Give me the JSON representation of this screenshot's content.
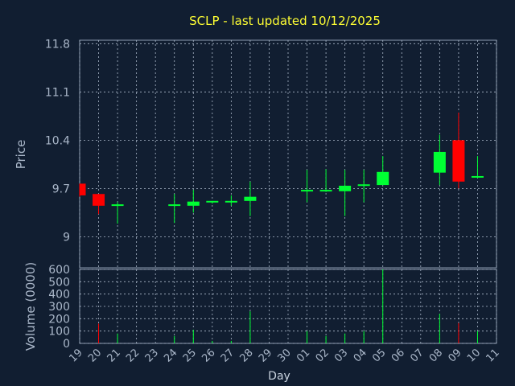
{
  "chart_data": {
    "type": "candlestick",
    "title": "SCLP - last updated 10/12/2025",
    "xlabel": "Day",
    "price_panel": {
      "ylabel": "Price",
      "ylim": [
        8.55,
        11.85
      ],
      "yticks": [
        "11.8",
        "11.1",
        "10.4",
        "9.7",
        "9"
      ]
    },
    "volume_panel": {
      "ylabel": "Volume (0000)",
      "ylim": [
        0,
        600
      ],
      "yticks": [
        "600",
        "500",
        "400",
        "300",
        "200",
        "100",
        "0"
      ]
    },
    "x_tick_labels": [
      "19",
      "20",
      "21",
      "22",
      "23",
      "24",
      "25",
      "26",
      "27",
      "28",
      "29",
      "30",
      "01",
      "02",
      "03",
      "04",
      "05",
      "06",
      "07",
      "08",
      "09",
      "10",
      "11"
    ],
    "grid": true,
    "colors": {
      "up": "#00ff33",
      "down": "#ff0000",
      "grid": "#aab7c9",
      "axis": "#8a9bb0"
    },
    "candles": [
      {
        "day": "19",
        "open": 9.77,
        "close": 9.6,
        "high": 9.77,
        "low": 9.58,
        "volume": 0
      },
      {
        "day": "20",
        "open": 9.62,
        "close": 9.45,
        "high": 9.62,
        "low": 9.33,
        "volume": 160
      },
      {
        "day": "21",
        "open": 9.45,
        "close": 9.47,
        "high": 9.5,
        "low": 9.19,
        "volume": 80
      },
      {
        "day": "24",
        "open": 9.45,
        "close": 9.47,
        "high": 9.62,
        "low": 9.2,
        "volume": 60
      },
      {
        "day": "25",
        "open": 9.45,
        "close": 9.51,
        "high": 9.68,
        "low": 9.35,
        "volume": 110
      },
      {
        "day": "26",
        "open": 9.5,
        "close": 9.52,
        "high": 9.52,
        "low": 9.48,
        "volume": 20
      },
      {
        "day": "27",
        "open": 9.5,
        "close": 9.52,
        "high": 9.6,
        "low": 9.45,
        "volume": 20
      },
      {
        "day": "28",
        "open": 9.52,
        "close": 9.58,
        "high": 9.8,
        "low": 9.3,
        "volume": 260
      },
      {
        "day": "01",
        "open": 9.66,
        "close": 9.68,
        "high": 9.97,
        "low": 9.5,
        "volume": 100
      },
      {
        "day": "02",
        "open": 9.66,
        "close": 9.68,
        "high": 9.98,
        "low": 9.65,
        "volume": 60
      },
      {
        "day": "03",
        "open": 9.66,
        "close": 9.74,
        "high": 9.97,
        "low": 9.3,
        "volume": 80
      },
      {
        "day": "04",
        "open": 9.74,
        "close": 9.76,
        "high": 9.97,
        "low": 9.5,
        "volume": 100
      },
      {
        "day": "05",
        "open": 9.75,
        "close": 9.94,
        "high": 10.17,
        "low": 9.75,
        "volume": 600
      },
      {
        "day": "08",
        "open": 9.93,
        "close": 10.23,
        "high": 10.48,
        "low": 9.75,
        "volume": 240
      },
      {
        "day": "09",
        "open": 10.4,
        "close": 9.8,
        "high": 10.8,
        "low": 9.7,
        "volume": 165
      },
      {
        "day": "10",
        "open": 9.86,
        "close": 9.88,
        "high": 10.17,
        "low": 9.85,
        "volume": 100
      }
    ]
  }
}
